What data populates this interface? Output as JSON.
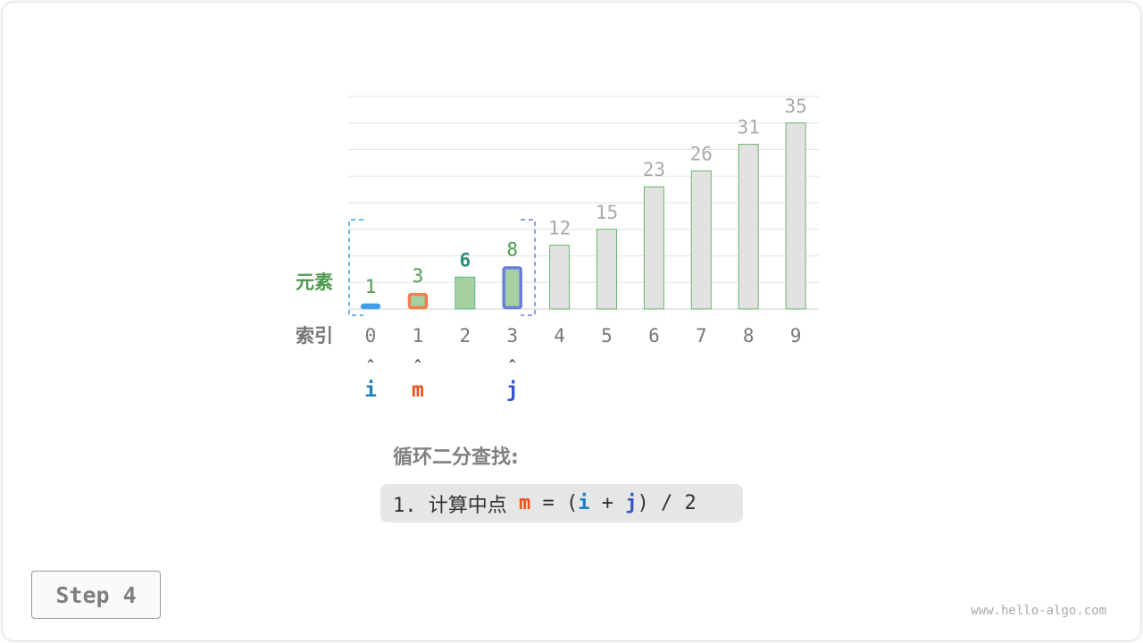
{
  "chart_data": {
    "type": "bar",
    "categories": [
      "0",
      "1",
      "2",
      "3",
      "4",
      "5",
      "6",
      "7",
      "8",
      "9"
    ],
    "values": [
      1,
      3,
      6,
      8,
      12,
      15,
      23,
      26,
      31,
      35
    ],
    "row_labels": {
      "values": "元素",
      "index": "索引"
    },
    "ylim": [
      0,
      40
    ],
    "grid": true,
    "search_range": [
      0,
      3
    ],
    "pointers": [
      {
        "label": "i",
        "index": 0,
        "color": "#1a7fc6",
        "bar_border": "#3ea0e8"
      },
      {
        "label": "m",
        "index": 1,
        "color": "#e8501a",
        "bar_border": "#f08050"
      },
      {
        "label": "j",
        "index": 3,
        "color": "#3353c9",
        "bar_border": "#6a7fdd"
      }
    ],
    "colors": {
      "active_fill": "#a5d0a0",
      "inactive_fill": "#e2e2e2",
      "bar_stroke": "#6bb56b",
      "active_label": "#4e9a4e",
      "target_label": "#2f8f80",
      "inactive_label": "#aaaaaa"
    }
  },
  "caption": {
    "title": "循环二分查找:",
    "step_prefix": "1. 计算中点 ",
    "m": "m",
    "eq": " = (",
    "i": "i",
    "plus": " + ",
    "j": "j",
    "tail": ") / 2"
  },
  "step_label": "Step 4",
  "watermark": "www.hello-algo.com"
}
